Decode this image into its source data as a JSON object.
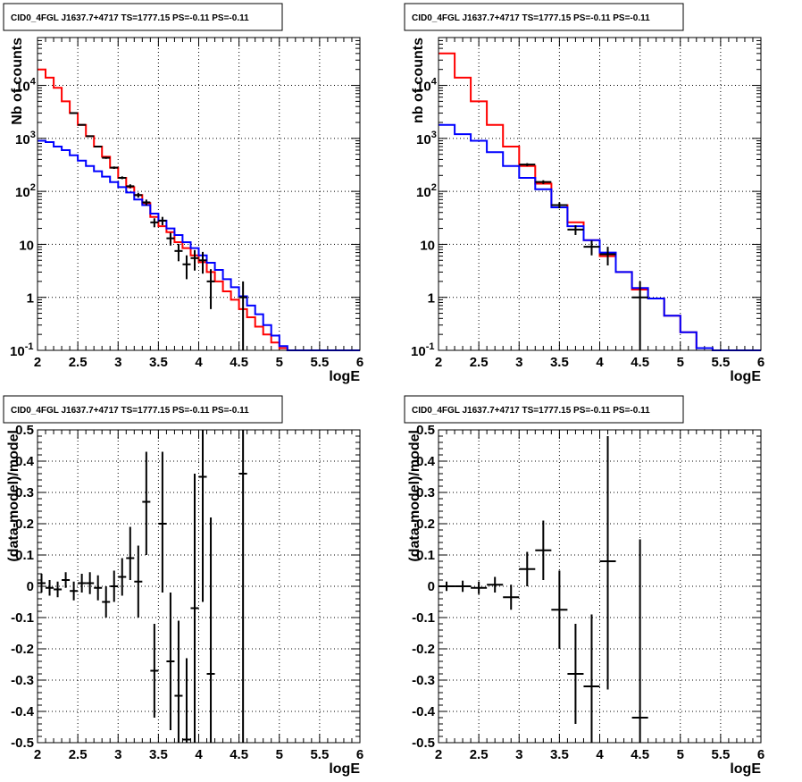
{
  "chart_data": [
    {
      "type": "line",
      "title": "CID0_4FGL J1637.7+4717 TS=1777.15 PS=-0.11 PS=-0.11",
      "xlabel": "logE",
      "ylabel": "Nb of counts",
      "xlim": [
        2,
        6
      ],
      "ylim": [
        0.1,
        80000
      ],
      "yscale": "log",
      "grid": true,
      "x_ticks": [
        "2",
        "2.5",
        "3",
        "3.5",
        "4",
        "4.5",
        "5",
        "5.5",
        "6"
      ],
      "y_ticks": [
        {
          "v": 0.1,
          "base": "10",
          "exp": "-1"
        },
        {
          "v": 1,
          "base": "1",
          "exp": ""
        },
        {
          "v": 10,
          "base": "10",
          "exp": ""
        },
        {
          "v": 100,
          "base": "10",
          "exp": "2"
        },
        {
          "v": 1000,
          "base": "10",
          "exp": "3"
        },
        {
          "v": 10000,
          "base": "10",
          "exp": "4"
        }
      ],
      "series": [
        {
          "color": "#ff0000",
          "style": "step",
          "edges": [
            2.0,
            2.1,
            2.2,
            2.3,
            2.4,
            2.5,
            2.6,
            2.7,
            2.8,
            2.9,
            3.0,
            3.1,
            3.2,
            3.3,
            3.4,
            3.5,
            3.6,
            3.7,
            3.8,
            3.9,
            4.0,
            4.1,
            4.2,
            4.3,
            4.4,
            4.5,
            4.6,
            4.7,
            4.8,
            4.9,
            5.0,
            5.1,
            5.2,
            5.3,
            5.4,
            5.5,
            5.6,
            5.7,
            5.8,
            5.9,
            6.0
          ],
          "values": [
            20000,
            14000,
            9000,
            5000,
            3000,
            1800,
            1100,
            700,
            450,
            280,
            180,
            120,
            85,
            60,
            33,
            22,
            17,
            11,
            8.5,
            6.2,
            4.6,
            3.0,
            2.0,
            1.3,
            0.9,
            0.6,
            0.42,
            0.28,
            0.2,
            0.14,
            0.11,
            0.1,
            0.1,
            0.1,
            0.1,
            0.1,
            0.1,
            0.1,
            0.1,
            0.1
          ]
        },
        {
          "color": "#0000ff",
          "style": "step",
          "edges": [
            2.0,
            2.1,
            2.2,
            2.3,
            2.4,
            2.5,
            2.6,
            2.7,
            2.8,
            2.9,
            3.0,
            3.1,
            3.2,
            3.3,
            3.4,
            3.5,
            3.6,
            3.7,
            3.8,
            3.9,
            4.0,
            4.1,
            4.2,
            4.3,
            4.4,
            4.5,
            4.6,
            4.7,
            4.8,
            4.9,
            5.0,
            5.1,
            5.2,
            5.3,
            5.4,
            5.5,
            5.6,
            5.7,
            5.8,
            5.9,
            6.0
          ],
          "values": [
            900,
            850,
            700,
            600,
            480,
            380,
            300,
            240,
            190,
            150,
            120,
            95,
            70,
            55,
            38,
            28,
            20,
            15,
            11,
            8.5,
            6.2,
            4.5,
            3.3,
            2.2,
            1.55,
            1.05,
            0.7,
            0.48,
            0.3,
            0.19,
            0.12,
            0.1,
            0.1,
            0.1,
            0.1,
            0.1,
            0.1,
            0.1,
            0.1,
            0.1
          ]
        }
      ],
      "points": [
        {
          "x": 2.45,
          "y": 3000,
          "xerr": 0.05,
          "ylo": 2900,
          "yhi": 3100
        },
        {
          "x": 2.55,
          "y": 1800,
          "xerr": 0.05,
          "ylo": 1750,
          "yhi": 1850
        },
        {
          "x": 2.65,
          "y": 1100,
          "xerr": 0.05,
          "ylo": 1070,
          "yhi": 1130
        },
        {
          "x": 2.75,
          "y": 700,
          "xerr": 0.05,
          "ylo": 675,
          "yhi": 725
        },
        {
          "x": 2.85,
          "y": 430,
          "xerr": 0.05,
          "ylo": 410,
          "yhi": 450
        },
        {
          "x": 2.95,
          "y": 280,
          "xerr": 0.05,
          "ylo": 265,
          "yhi": 295
        },
        {
          "x": 3.05,
          "y": 180,
          "xerr": 0.05,
          "ylo": 170,
          "yhi": 192
        },
        {
          "x": 3.15,
          "y": 125,
          "xerr": 0.05,
          "ylo": 114,
          "yhi": 136
        },
        {
          "x": 3.25,
          "y": 85,
          "xerr": 0.05,
          "ylo": 76,
          "yhi": 94
        },
        {
          "x": 3.35,
          "y": 62,
          "xerr": 0.05,
          "ylo": 54,
          "yhi": 70
        },
        {
          "x": 3.45,
          "y": 26,
          "xerr": 0.05,
          "ylo": 21,
          "yhi": 31
        },
        {
          "x": 3.55,
          "y": 28,
          "xerr": 0.05,
          "ylo": 23,
          "yhi": 33
        },
        {
          "x": 3.65,
          "y": 13,
          "xerr": 0.05,
          "ylo": 9.5,
          "yhi": 16.5
        },
        {
          "x": 3.75,
          "y": 7.5,
          "xerr": 0.05,
          "ylo": 4.8,
          "yhi": 10.2
        },
        {
          "x": 3.85,
          "y": 4.2,
          "xerr": 0.05,
          "ylo": 2.2,
          "yhi": 6.2
        },
        {
          "x": 3.95,
          "y": 5.5,
          "xerr": 0.05,
          "ylo": 3.2,
          "yhi": 7.8
        },
        {
          "x": 4.05,
          "y": 5.0,
          "xerr": 0.05,
          "ylo": 2.8,
          "yhi": 7.2
        },
        {
          "x": 4.15,
          "y": 2.0,
          "xerr": 0.05,
          "ylo": 0.6,
          "yhi": 3.4
        },
        {
          "x": 4.55,
          "y": 1.0,
          "xerr": 0.05,
          "ylo": 0.1,
          "yhi": 2.0
        }
      ]
    },
    {
      "type": "line",
      "title": "CID0_4FGL J1637.7+4717 TS=1777.15 PS=-0.11 PS=-0.11",
      "xlabel": "logE",
      "ylabel": "nb of counts",
      "xlim": [
        2,
        6
      ],
      "ylim": [
        0.1,
        80000
      ],
      "yscale": "log",
      "grid": true,
      "x_ticks": [
        "2",
        "2.5",
        "3",
        "3.5",
        "4",
        "4.5",
        "5",
        "5.5",
        "6"
      ],
      "y_ticks": [
        {
          "v": 0.1,
          "base": "10",
          "exp": "-1"
        },
        {
          "v": 1,
          "base": "1",
          "exp": ""
        },
        {
          "v": 10,
          "base": "10",
          "exp": ""
        },
        {
          "v": 100,
          "base": "10",
          "exp": "2"
        },
        {
          "v": 1000,
          "base": "10",
          "exp": "3"
        },
        {
          "v": 10000,
          "base": "10",
          "exp": "4"
        }
      ],
      "series": [
        {
          "color": "#ff0000",
          "style": "step",
          "edges": [
            2.0,
            2.2,
            2.4,
            2.6,
            2.8,
            3.0,
            3.2,
            3.4,
            3.6,
            3.8,
            4.0,
            4.2,
            4.4,
            4.6,
            4.8,
            5.0,
            5.2,
            5.4,
            5.6,
            5.8,
            6.0
          ],
          "values": [
            40000,
            14000,
            5000,
            1800,
            700,
            300,
            140,
            55,
            26,
            12,
            6,
            3,
            1.4,
            0.95,
            0.45,
            0.22,
            0.11,
            0.1,
            0.1,
            0.1
          ]
        },
        {
          "color": "#0000ff",
          "style": "step",
          "edges": [
            2.0,
            2.2,
            2.4,
            2.6,
            2.8,
            3.0,
            3.2,
            3.4,
            3.6,
            3.8,
            4.0,
            4.2,
            4.4,
            4.6,
            4.8,
            5.0,
            5.2,
            5.4,
            5.6,
            5.8,
            6.0
          ],
          "values": [
            1800,
            1200,
            900,
            550,
            300,
            180,
            110,
            50,
            22,
            12,
            7,
            3,
            1.5,
            0.95,
            0.45,
            0.22,
            0.11,
            0.1,
            0.1,
            0.1
          ]
        }
      ],
      "points": [
        {
          "x": 3.1,
          "y": 320,
          "xerr": 0.1,
          "ylo": 300,
          "yhi": 340
        },
        {
          "x": 3.3,
          "y": 150,
          "xerr": 0.1,
          "ylo": 138,
          "yhi": 162
        },
        {
          "x": 3.5,
          "y": 55,
          "xerr": 0.1,
          "ylo": 48,
          "yhi": 62
        },
        {
          "x": 3.7,
          "y": 19,
          "xerr": 0.1,
          "ylo": 15,
          "yhi": 23
        },
        {
          "x": 3.9,
          "y": 9,
          "xerr": 0.1,
          "ylo": 6.2,
          "yhi": 11.8
        },
        {
          "x": 4.1,
          "y": 6.5,
          "xerr": 0.1,
          "ylo": 4.0,
          "yhi": 9.0
        },
        {
          "x": 4.5,
          "y": 1.0,
          "xerr": 0.1,
          "ylo": 0.1,
          "yhi": 2.0
        }
      ]
    },
    {
      "type": "scatter",
      "title": "CID0_4FGL J1637.7+4717 TS=1777.15 PS=-0.11 PS=-0.11",
      "xlabel": "logE",
      "ylabel": "(data-model)/model",
      "xlim": [
        2,
        6
      ],
      "ylim": [
        -0.5,
        0.5
      ],
      "grid": true,
      "x_ticks": [
        "2",
        "2.5",
        "3",
        "3.5",
        "4",
        "4.5",
        "5",
        "5.5",
        "6"
      ],
      "y_ticks": [
        "-0.5",
        "-0.4",
        "-0.3",
        "-0.2",
        "-0.1",
        "0",
        "0.1",
        "0.2",
        "0.3",
        "0.4",
        "0.5"
      ],
      "points": [
        {
          "x": 2.05,
          "y": 0.01,
          "xerr": 0.05,
          "ylo": -0.02,
          "yhi": 0.04
        },
        {
          "x": 2.15,
          "y": -0.005,
          "xerr": 0.05,
          "ylo": -0.03,
          "yhi": 0.02
        },
        {
          "x": 2.25,
          "y": -0.01,
          "xerr": 0.05,
          "ylo": -0.035,
          "yhi": 0.015
        },
        {
          "x": 2.35,
          "y": 0.02,
          "xerr": 0.05,
          "ylo": -0.005,
          "yhi": 0.045
        },
        {
          "x": 2.45,
          "y": -0.015,
          "xerr": 0.05,
          "ylo": -0.045,
          "yhi": 0.015
        },
        {
          "x": 2.55,
          "y": 0.01,
          "xerr": 0.05,
          "ylo": -0.02,
          "yhi": 0.04
        },
        {
          "x": 2.65,
          "y": 0.01,
          "xerr": 0.05,
          "ylo": -0.025,
          "yhi": 0.045
        },
        {
          "x": 2.75,
          "y": -0.005,
          "xerr": 0.05,
          "ylo": -0.045,
          "yhi": 0.035
        },
        {
          "x": 2.85,
          "y": -0.05,
          "xerr": 0.05,
          "ylo": -0.1,
          "yhi": 0.0
        },
        {
          "x": 2.95,
          "y": 0.0,
          "xerr": 0.05,
          "ylo": -0.05,
          "yhi": 0.05
        },
        {
          "x": 3.05,
          "y": 0.03,
          "xerr": 0.05,
          "ylo": -0.03,
          "yhi": 0.09
        },
        {
          "x": 3.15,
          "y": 0.09,
          "xerr": 0.05,
          "ylo": 0.02,
          "yhi": 0.19
        },
        {
          "x": 3.25,
          "y": 0.015,
          "xerr": 0.05,
          "ylo": -0.1,
          "yhi": 0.13
        },
        {
          "x": 3.35,
          "y": 0.27,
          "xerr": 0.05,
          "ylo": 0.1,
          "yhi": 0.43
        },
        {
          "x": 3.45,
          "y": -0.27,
          "xerr": 0.05,
          "ylo": -0.42,
          "yhi": -0.12
        },
        {
          "x": 3.55,
          "y": 0.2,
          "xerr": 0.05,
          "ylo": -0.02,
          "yhi": 0.43
        },
        {
          "x": 3.65,
          "y": -0.24,
          "xerr": 0.05,
          "ylo": -0.46,
          "yhi": -0.02
        },
        {
          "x": 3.75,
          "y": -0.35,
          "xerr": 0.05,
          "ylo": -0.55,
          "yhi": -0.11
        },
        {
          "x": 3.85,
          "y": -0.49,
          "xerr": 0.05,
          "ylo": -0.55,
          "yhi": -0.23
        },
        {
          "x": 3.95,
          "y": -0.07,
          "xerr": 0.05,
          "ylo": -0.5,
          "yhi": 0.36
        },
        {
          "x": 4.05,
          "y": 0.35,
          "xerr": 0.05,
          "ylo": -0.05,
          "yhi": 0.55
        },
        {
          "x": 4.15,
          "y": -0.28,
          "xerr": 0.05,
          "ylo": -0.55,
          "yhi": 0.22
        },
        {
          "x": 4.55,
          "y": 0.36,
          "xerr": 0.05,
          "ylo": -0.55,
          "yhi": 0.55
        }
      ]
    },
    {
      "type": "scatter",
      "title": "CID0_4FGL J1637.7+4717 TS=1777.15 PS=-0.11 PS=-0.11",
      "xlabel": "logE",
      "ylabel": "(data-model)/model",
      "xlim": [
        2,
        6
      ],
      "ylim": [
        -0.5,
        0.5
      ],
      "grid": true,
      "x_ticks": [
        "2",
        "2.5",
        "3",
        "3.5",
        "4",
        "4.5",
        "5",
        "5.5",
        "6"
      ],
      "y_ticks": [
        "-0.5",
        "-0.4",
        "-0.3",
        "-0.2",
        "-0.1",
        "0",
        "0.1",
        "0.2",
        "0.3",
        "0.4",
        "0.5"
      ],
      "points": [
        {
          "x": 2.1,
          "y": 0.0,
          "xerr": 0.1,
          "ylo": -0.015,
          "yhi": 0.015
        },
        {
          "x": 2.3,
          "y": 0.0,
          "xerr": 0.1,
          "ylo": -0.018,
          "yhi": 0.018
        },
        {
          "x": 2.5,
          "y": -0.005,
          "xerr": 0.1,
          "ylo": -0.025,
          "yhi": 0.015
        },
        {
          "x": 2.7,
          "y": 0.005,
          "xerr": 0.1,
          "ylo": -0.02,
          "yhi": 0.03
        },
        {
          "x": 2.9,
          "y": -0.035,
          "xerr": 0.1,
          "ylo": -0.075,
          "yhi": 0.005
        },
        {
          "x": 3.1,
          "y": 0.055,
          "xerr": 0.1,
          "ylo": 0.0,
          "yhi": 0.11
        },
        {
          "x": 3.3,
          "y": 0.115,
          "xerr": 0.1,
          "ylo": 0.02,
          "yhi": 0.21
        },
        {
          "x": 3.5,
          "y": -0.075,
          "xerr": 0.1,
          "ylo": -0.2,
          "yhi": 0.05
        },
        {
          "x": 3.7,
          "y": -0.28,
          "xerr": 0.1,
          "ylo": -0.44,
          "yhi": -0.12
        },
        {
          "x": 3.9,
          "y": -0.32,
          "xerr": 0.1,
          "ylo": -0.5,
          "yhi": -0.09
        },
        {
          "x": 4.1,
          "y": 0.08,
          "xerr": 0.1,
          "ylo": -0.33,
          "yhi": 0.48
        },
        {
          "x": 4.5,
          "y": -0.42,
          "xerr": 0.1,
          "ylo": -0.55,
          "yhi": 0.15
        }
      ]
    }
  ]
}
